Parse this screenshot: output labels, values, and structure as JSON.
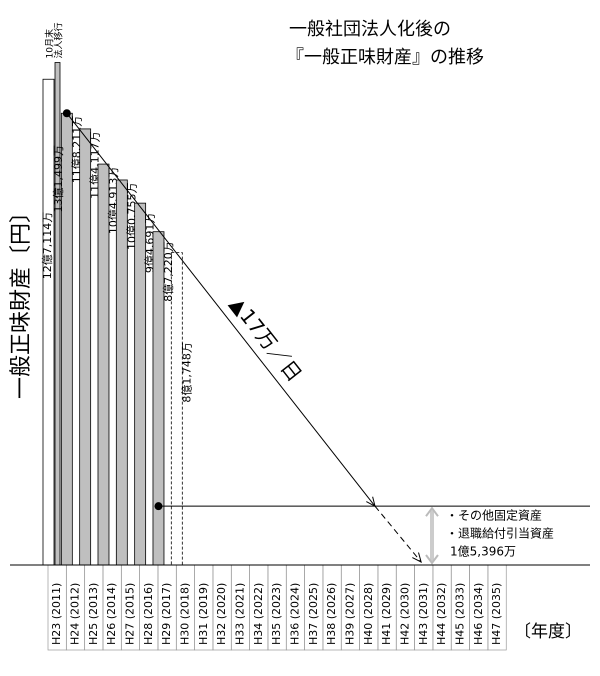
{
  "chart_data": {
    "type": "bar",
    "title": [
      "一般社団法人化後の",
      "『一般正味財産』の推移"
    ],
    "y_label": "一般正味財産〔円〕",
    "x_label": "〔年度〕",
    "categories": [
      "H23 (2011)",
      "H24 (2012)",
      "H25 (2013)",
      "H26 (2014)",
      "H27 (2015)",
      "H28 (2016)",
      "H29 (2017)",
      "H30 (2018)",
      "H31 (2019)",
      "H32 (2020)",
      "H33 (2021)",
      "H34 (2022)",
      "H35 (2023)",
      "H36 (2024)",
      "H37 (2025)",
      "H38 (2026)",
      "H39 (2027)",
      "H40 (2028)",
      "H41 (2029)",
      "H42 (2030)",
      "H43 (2031)",
      "H44 (2032)",
      "H45 (2033)",
      "H46 (2034)",
      "H47 (2035)"
    ],
    "values": [
      1271140000,
      1182110000,
      1141170000,
      1049130000,
      1007550000,
      946910000,
      872200000,
      null,
      null,
      null,
      null,
      null,
      null,
      null,
      null,
      null,
      null,
      null,
      null,
      null,
      null,
      null,
      null,
      null,
      null
    ],
    "value_labels": [
      "12億7,114万",
      "11億8,211万",
      "11億4,117万",
      "10億4,913万",
      "10億0,755万",
      "9億4,691万",
      "8億7,220万",
      null,
      null,
      null,
      null,
      null,
      null,
      null,
      null,
      null,
      null,
      null,
      null,
      null,
      null,
      null,
      null,
      null,
      null
    ],
    "colors": [
      "#ffffff",
      "#bfbfbf"
    ],
    "transition": {
      "value": 1314990000,
      "value_label": "13億1,499万",
      "annotation": [
        "10月末",
        "法人移行"
      ]
    },
    "forecast": {
      "category": 7,
      "value": 817480000,
      "value_label": "8億1,748万"
    },
    "trend_label": "▲17万／日",
    "floor": {
      "value": 153960000,
      "value_label": "1億5,396万",
      "items": [
        "・その他固定資産",
        "・退職給付引当資産"
      ]
    },
    "ylim": [
      0,
      1400000000
    ]
  }
}
